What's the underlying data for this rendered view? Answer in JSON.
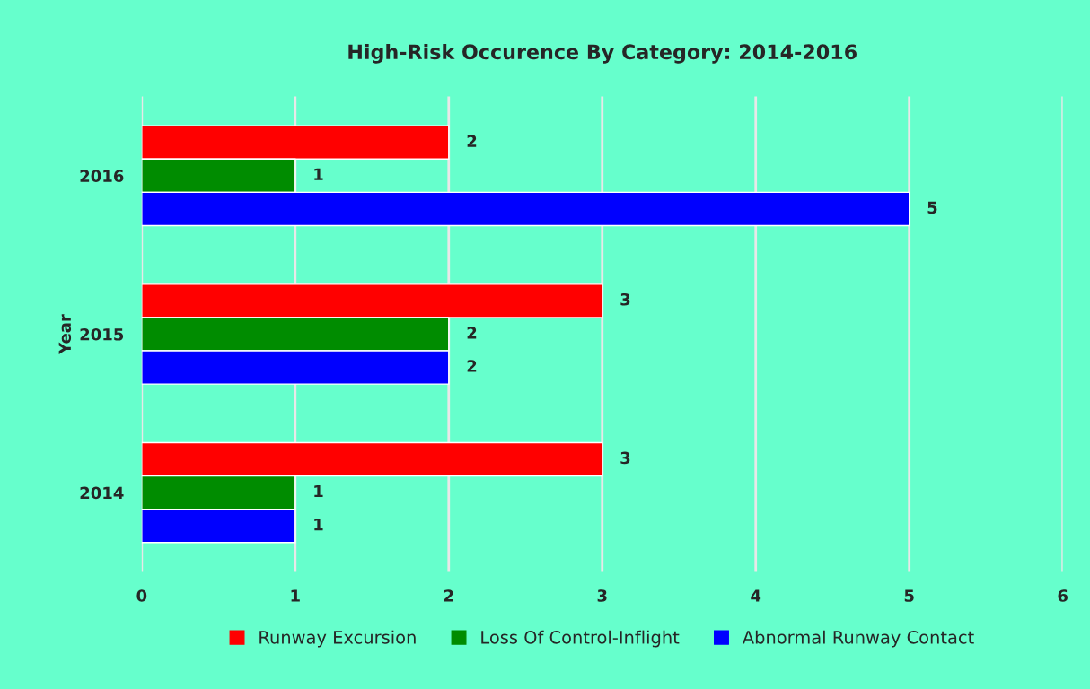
{
  "chart_data": {
    "type": "bar",
    "orientation": "horizontal",
    "title": "High-Risk Occurence By Category: 2014-2016",
    "ylabel": "Year",
    "categories": [
      "2016",
      "2015",
      "2014"
    ],
    "series": [
      {
        "name": "Runway Excursion",
        "color": "#ff0000",
        "values": [
          2,
          3,
          3
        ]
      },
      {
        "name": "Loss Of Control-Inflight",
        "color": "#008c00",
        "values": [
          1,
          2,
          1
        ]
      },
      {
        "name": "Abnormal Runway Contact",
        "color": "#0000ff",
        "values": [
          5,
          2,
          1
        ]
      }
    ],
    "xlim": [
      0,
      6
    ],
    "xticks": [
      0,
      1,
      2,
      3,
      4,
      5,
      6
    ],
    "grid": "x",
    "legend": "bottom",
    "data_labels": true
  }
}
